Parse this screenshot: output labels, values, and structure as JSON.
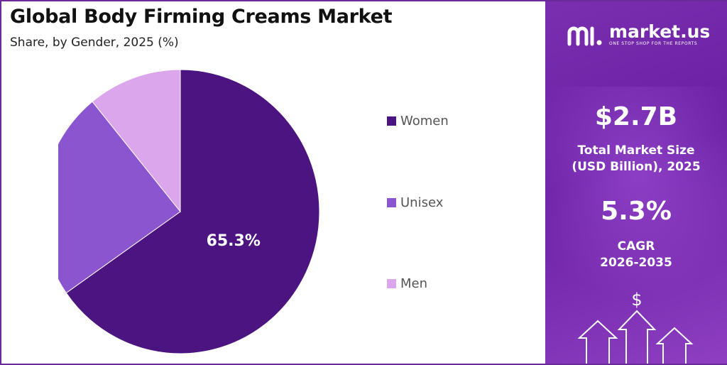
{
  "title": "Global Body Firming Creams Market",
  "subtitle": "Share, by Gender, 2025 (%)",
  "chart_data": {
    "type": "pie",
    "categories": [
      "Women",
      "Unisex",
      "Men"
    ],
    "values": [
      65.3,
      23.8,
      10.9
    ],
    "data_labels": [
      "65.3%",
      "",
      ""
    ],
    "colors": [
      "#4b1480",
      "#8b55d0",
      "#dca6ec"
    ],
    "legend_position": "right"
  },
  "legend": {
    "items": [
      {
        "label": "Women",
        "color": "#4b1480"
      },
      {
        "label": "Unisex",
        "color": "#8b55d0"
      },
      {
        "label": "Men",
        "color": "#dca6ec"
      }
    ]
  },
  "brand": {
    "name": "market.us",
    "tagline": "ONE STOP SHOP FOR THE REPORTS",
    "icon": "market-us-logo-icon"
  },
  "stats": {
    "market_size_value": "$2.7B",
    "market_size_label_line1": "Total Market Size",
    "market_size_label_line2": "(USD Billion), 2025",
    "cagr_value": "5.3%",
    "cagr_label_line1": "CAGR",
    "cagr_label_line2": "2026-2035"
  },
  "decoration": {
    "dollar_symbol": "$",
    "icon": "growth-arrows-icon"
  }
}
